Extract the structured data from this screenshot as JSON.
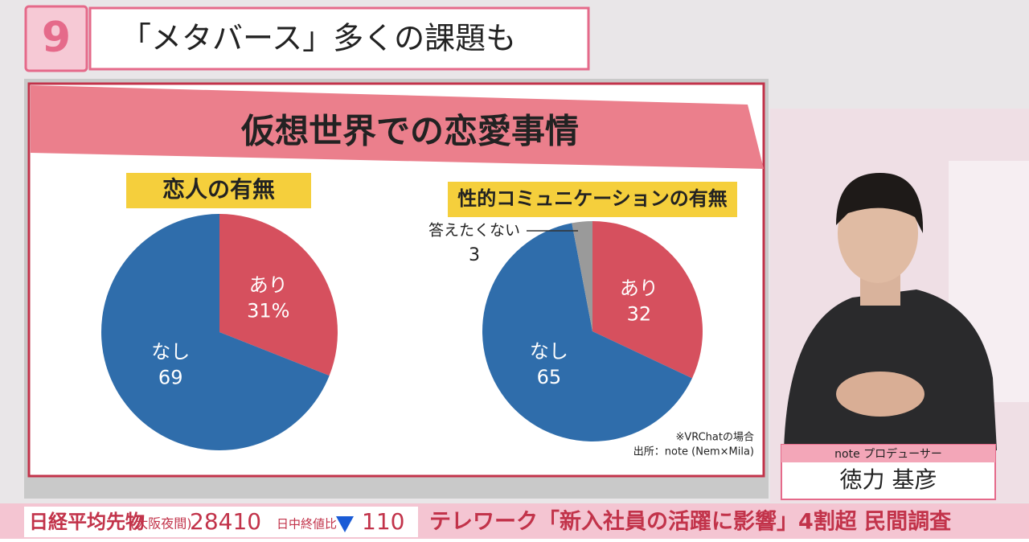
{
  "header": {
    "logo": "9",
    "title": "「メタバース」多くの課題も"
  },
  "board_title": "仮想世界での恋愛事情",
  "chart_data": [
    {
      "type": "pie",
      "title": "恋人の有無",
      "categories": [
        "あり",
        "なし"
      ],
      "values": [
        31,
        69
      ],
      "value_labels": [
        "31%",
        "69"
      ],
      "colors": [
        "#d6505e",
        "#2f6dab"
      ]
    },
    {
      "type": "pie",
      "title": "性的コミュニケーションの有無",
      "categories": [
        "あり",
        "なし",
        "答えたくない"
      ],
      "values": [
        32,
        65,
        3
      ],
      "colors": [
        "#d6505e",
        "#2f6dab",
        "#9a9a9a"
      ],
      "notes": [
        "※VRChatの場合",
        "出所：note (Nem×Mila)"
      ]
    }
  ],
  "nameplate": {
    "role": "note プロデューサー",
    "name": "徳力 基彦"
  },
  "ticker": {
    "index": "日経平均先物",
    "session": "(大阪夜間)",
    "price": "28410",
    "change_label": "日中終値比",
    "change": "110",
    "headline": "テレワーク「新入社員の活躍に影響」4割超 民間調査"
  }
}
